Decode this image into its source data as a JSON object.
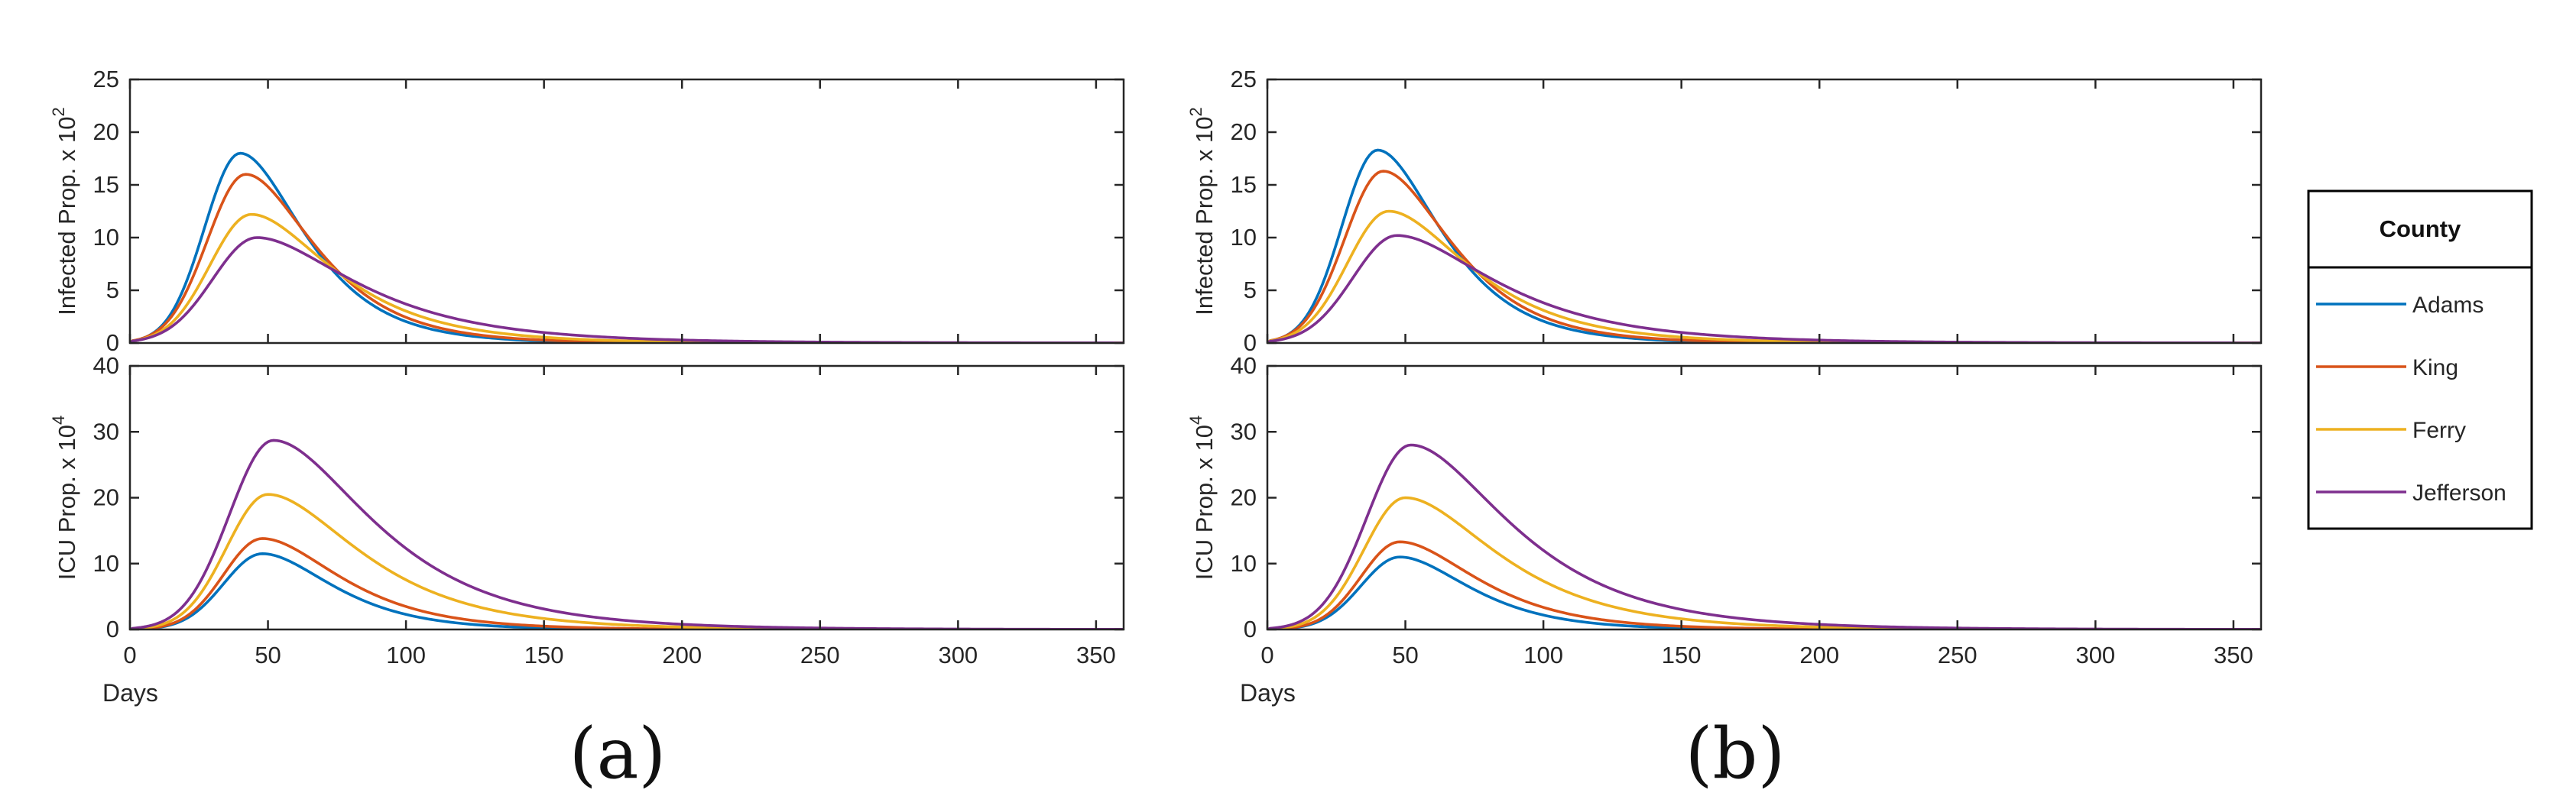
{
  "figure": {
    "legend": {
      "title": "County",
      "entries": [
        {
          "name": "Adams",
          "color": "#0072BD"
        },
        {
          "name": "King",
          "color": "#D95319"
        },
        {
          "name": "Ferry",
          "color": "#EDB120"
        },
        {
          "name": "Jefferson",
          "color": "#7E2F8E"
        }
      ]
    },
    "panel_labels": [
      "(a)",
      "(b)"
    ]
  },
  "chart_data": [
    {
      "id": "a-top",
      "panel": "(a)",
      "type": "line",
      "title": "",
      "xlabel": "",
      "ylabel": "Infected Prop. x 10",
      "ylabel_exponent": "2",
      "xlim": [
        0,
        360
      ],
      "ylim": [
        0,
        25
      ],
      "xticks": [],
      "yticks": [
        0,
        5,
        10,
        15,
        20,
        25
      ],
      "grid": false,
      "series": [
        {
          "name": "Adams",
          "color": "#0072BD",
          "peak_day": 40,
          "peak": 18.0,
          "rise": 13,
          "decay": 43
        },
        {
          "name": "King",
          "color": "#D95319",
          "peak_day": 42,
          "peak": 16.0,
          "rise": 14,
          "decay": 46
        },
        {
          "name": "Ferry",
          "color": "#EDB120",
          "peak_day": 44,
          "peak": 12.2,
          "rise": 15,
          "decay": 53
        },
        {
          "name": "Jefferson",
          "color": "#7E2F8E",
          "peak_day": 46,
          "peak": 10.0,
          "rise": 16,
          "decay": 62
        }
      ]
    },
    {
      "id": "a-bottom",
      "panel": "(a)",
      "type": "line",
      "title": "",
      "xlabel": "Days",
      "ylabel": "ICU Prop. x 10",
      "ylabel_exponent": "4",
      "xlim": [
        0,
        360
      ],
      "ylim": [
        0,
        40
      ],
      "xticks": [
        0,
        50,
        100,
        150,
        200,
        250,
        300,
        350
      ],
      "yticks": [
        0,
        10,
        20,
        30,
        40
      ],
      "grid": false,
      "series": [
        {
          "name": "Adams",
          "color": "#0072BD",
          "peak_day": 48,
          "peak": 11.5,
          "rise": 14,
          "decay": 48
        },
        {
          "name": "King",
          "color": "#D95319",
          "peak_day": 48,
          "peak": 13.8,
          "rise": 14,
          "decay": 52
        },
        {
          "name": "Ferry",
          "color": "#EDB120",
          "peak_day": 50,
          "peak": 20.5,
          "rise": 15,
          "decay": 60
        },
        {
          "name": "Jefferson",
          "color": "#7E2F8E",
          "peak_day": 52,
          "peak": 28.7,
          "rise": 16,
          "decay": 64
        }
      ]
    },
    {
      "id": "b-top",
      "panel": "(b)",
      "type": "line",
      "title": "",
      "xlabel": "",
      "ylabel": "Infected Prop. x 10",
      "ylabel_exponent": "2",
      "xlim": [
        0,
        360
      ],
      "ylim": [
        0,
        25
      ],
      "xticks": [],
      "yticks": [
        0,
        5,
        10,
        15,
        20,
        25
      ],
      "grid": false,
      "series": [
        {
          "name": "Adams",
          "color": "#0072BD",
          "peak_day": 40,
          "peak": 18.3,
          "rise": 13,
          "decay": 43
        },
        {
          "name": "King",
          "color": "#D95319",
          "peak_day": 42,
          "peak": 16.3,
          "rise": 14,
          "decay": 46
        },
        {
          "name": "Ferry",
          "color": "#EDB120",
          "peak_day": 44,
          "peak": 12.5,
          "rise": 15,
          "decay": 53
        },
        {
          "name": "Jefferson",
          "color": "#7E2F8E",
          "peak_day": 47,
          "peak": 10.2,
          "rise": 16,
          "decay": 62
        }
      ]
    },
    {
      "id": "b-bottom",
      "panel": "(b)",
      "type": "line",
      "title": "",
      "xlabel": "Days",
      "ylabel": "ICU Prop. x 10",
      "ylabel_exponent": "4",
      "xlim": [
        0,
        360
      ],
      "ylim": [
        0,
        40
      ],
      "xticks": [
        0,
        50,
        100,
        150,
        200,
        250,
        300,
        350
      ],
      "yticks": [
        0,
        10,
        20,
        30,
        40
      ],
      "grid": false,
      "series": [
        {
          "name": "Adams",
          "color": "#0072BD",
          "peak_day": 48,
          "peak": 11.0,
          "rise": 14,
          "decay": 48
        },
        {
          "name": "King",
          "color": "#D95319",
          "peak_day": 48,
          "peak": 13.3,
          "rise": 14,
          "decay": 52
        },
        {
          "name": "Ferry",
          "color": "#EDB120",
          "peak_day": 50,
          "peak": 20.0,
          "rise": 15,
          "decay": 60
        },
        {
          "name": "Jefferson",
          "color": "#7E2F8E",
          "peak_day": 52,
          "peak": 28.0,
          "rise": 16,
          "decay": 64
        }
      ]
    }
  ]
}
